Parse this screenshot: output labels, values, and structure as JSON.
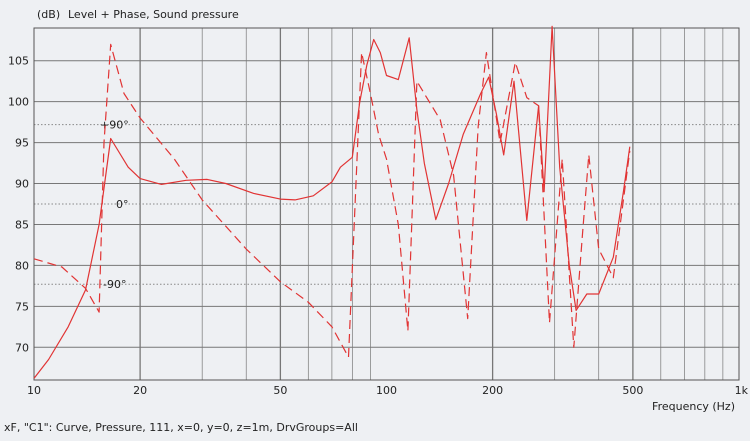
{
  "header": {
    "unit": "(dB)",
    "title": "Level + Phase, Sound pressure"
  },
  "footer": {
    "caption": "xF, \"C1\": Curve, Pressure, 111, x=0, y=0, z=1m, DrvGroups=All"
  },
  "colors": {
    "background": "#eef0f3",
    "curve": "#e13434",
    "grid": "#777777"
  },
  "chart_data": {
    "type": "line",
    "title": "Level + Phase, Sound pressure",
    "xlabel": "Frequency  (Hz)",
    "ylabel": "(dB)",
    "xscale": "log",
    "xlim": [
      10,
      1000
    ],
    "ylim": [
      66,
      109
    ],
    "grid": true,
    "x_tick_labels": [
      "10",
      "20",
      "50",
      "100",
      "200",
      "500",
      "1k"
    ],
    "x_ticks": [
      10,
      20,
      50,
      100,
      200,
      500,
      1000
    ],
    "y_ticks": [
      70,
      75,
      80,
      85,
      90,
      95,
      100,
      105
    ],
    "phase_labels": [
      {
        "text": "+90°",
        "level": 97.2
      },
      {
        "text": "0°",
        "level": 87.5
      },
      {
        "text": "-90°",
        "level": 77.7
      }
    ],
    "series": [
      {
        "style": "solid",
        "points": [
          [
            10,
            66.2
          ],
          [
            11,
            68.5
          ],
          [
            12.5,
            72.5
          ],
          [
            14,
            77
          ],
          [
            15.3,
            85
          ],
          [
            16.5,
            95.5
          ],
          [
            18.5,
            92
          ],
          [
            20,
            90.6
          ],
          [
            23,
            89.9
          ],
          [
            27,
            90.4
          ],
          [
            31,
            90.5
          ],
          [
            35,
            90.0
          ],
          [
            42,
            88.8
          ],
          [
            50,
            88.1
          ],
          [
            55,
            88.0
          ],
          [
            62,
            88.5
          ],
          [
            70,
            90.2
          ],
          [
            74,
            92
          ],
          [
            80,
            93.2
          ],
          [
            84,
            100
          ],
          [
            88,
            104.5
          ],
          [
            92,
            107.6
          ],
          [
            96,
            106
          ],
          [
            100,
            103.2
          ],
          [
            108,
            102.7
          ],
          [
            116,
            107.8
          ],
          [
            122,
            99
          ],
          [
            128,
            92.5
          ],
          [
            138,
            85.6
          ],
          [
            150,
            90
          ],
          [
            165,
            96
          ],
          [
            185,
            101
          ],
          [
            195,
            103
          ],
          [
            205,
            98.5
          ],
          [
            215,
            93.5
          ],
          [
            230,
            102.5
          ],
          [
            250,
            85.5
          ],
          [
            270,
            99.5
          ],
          [
            280,
            89
          ],
          [
            295,
            109.2
          ],
          [
            310,
            92
          ],
          [
            330,
            80
          ],
          [
            345,
            74.5
          ],
          [
            370,
            76.5
          ],
          [
            400,
            76.5
          ],
          [
            440,
            81
          ],
          [
            470,
            89
          ],
          [
            490,
            94.5
          ]
        ]
      },
      {
        "style": "dashed",
        "points": [
          [
            10,
            80.8
          ],
          [
            12,
            79.8
          ],
          [
            14,
            77.2
          ],
          [
            15.3,
            74.3
          ],
          [
            15.8,
            95
          ],
          [
            16.5,
            107
          ],
          [
            18,
            101
          ],
          [
            20,
            98
          ],
          [
            25,
            93
          ],
          [
            30,
            88
          ],
          [
            40,
            82
          ],
          [
            50,
            78
          ],
          [
            60,
            75.5
          ],
          [
            70,
            72.5
          ],
          [
            78,
            68.8
          ],
          [
            85,
            106
          ],
          [
            90,
            101
          ],
          [
            95,
            96
          ],
          [
            100,
            93
          ],
          [
            108,
            85
          ],
          [
            115,
            72
          ],
          [
            122,
            102.5
          ],
          [
            130,
            100.5
          ],
          [
            142,
            97.8
          ],
          [
            155,
            91
          ],
          [
            170,
            73.5
          ],
          [
            182,
            97
          ],
          [
            192,
            106
          ],
          [
            210,
            95
          ],
          [
            232,
            104.8
          ],
          [
            250,
            100.5
          ],
          [
            270,
            99.5
          ],
          [
            290,
            73
          ],
          [
            315,
            93
          ],
          [
            340,
            70
          ],
          [
            360,
            84
          ],
          [
            375,
            93.5
          ],
          [
            400,
            82
          ],
          [
            440,
            78.5
          ],
          [
            490,
            94
          ]
        ]
      }
    ]
  }
}
